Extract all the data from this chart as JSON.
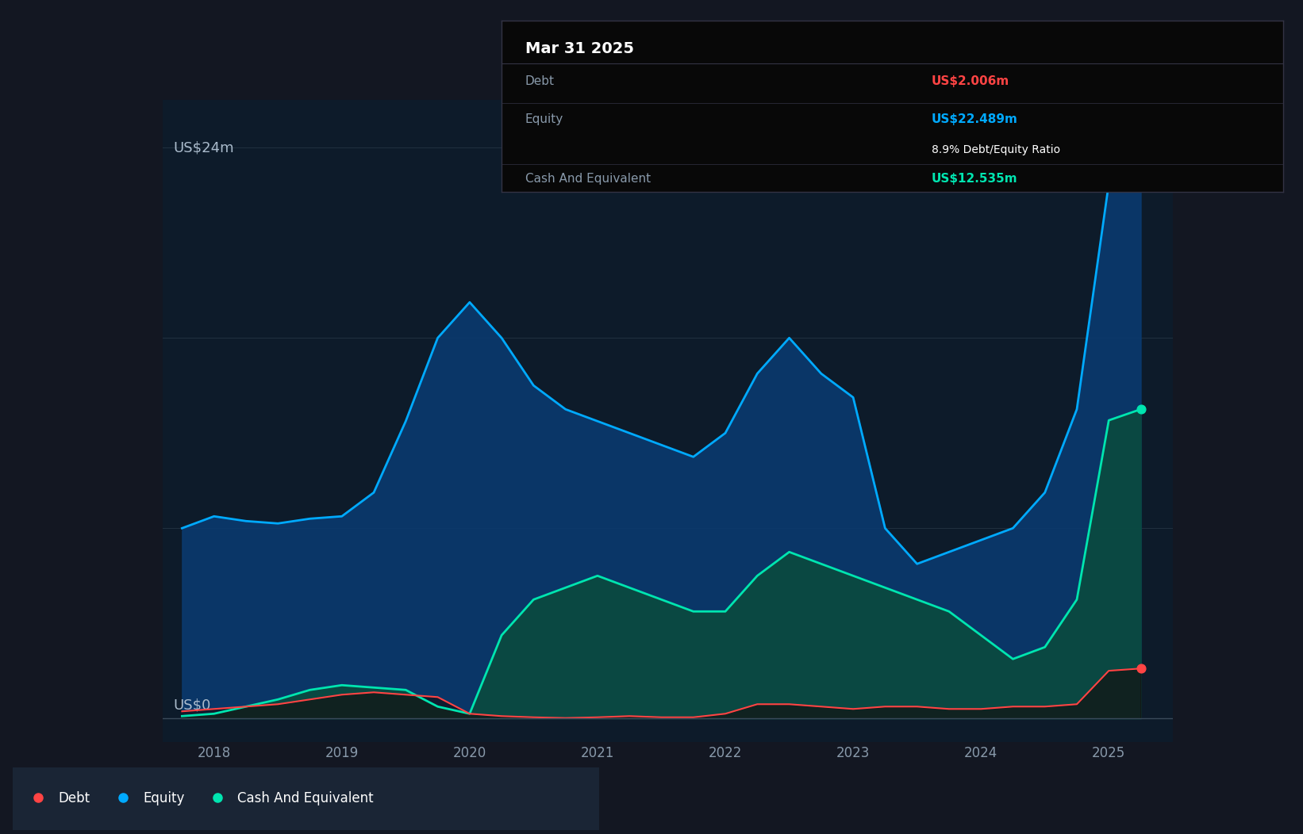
{
  "bg_color": "#131722",
  "plot_bg_color": "#0d1b2a",
  "ylabel": "US$24m",
  "y0_label": "US$0",
  "x_ticks": [
    2018,
    2019,
    2020,
    2021,
    2022,
    2023,
    2024,
    2025
  ],
  "infobox": {
    "title": "Mar 31 2025",
    "debt_label": "Debt",
    "debt_value": "US$2.006m",
    "equity_label": "Equity",
    "equity_value": "US$22.489m",
    "ratio": "8.9% Debt/Equity Ratio",
    "cash_label": "Cash And Equivalent",
    "cash_value": "US$12.535m"
  },
  "equity_color": "#00aaff",
  "debt_color": "#ff4444",
  "cash_color": "#00e5b0",
  "equity_fill": "#0a3a6e",
  "cash_fill": "#0a4a40",
  "grid_color": "#2a3a4a",
  "legend_bg": "#1a2535",
  "dates": [
    2017.75,
    2018.0,
    2018.25,
    2018.5,
    2018.75,
    2019.0,
    2019.25,
    2019.5,
    2019.75,
    2020.0,
    2020.25,
    2020.5,
    2020.75,
    2021.0,
    2021.25,
    2021.5,
    2021.75,
    2022.0,
    2022.25,
    2022.5,
    2022.75,
    2023.0,
    2023.25,
    2023.5,
    2023.75,
    2024.0,
    2024.25,
    2024.5,
    2024.75,
    2025.0,
    2025.25
  ],
  "equity": [
    8.0,
    8.5,
    8.3,
    8.2,
    8.4,
    8.5,
    9.5,
    12.5,
    16.0,
    17.5,
    16.0,
    14.0,
    13.0,
    12.5,
    12.0,
    11.5,
    11.0,
    12.0,
    14.5,
    16.0,
    14.5,
    13.5,
    8.0,
    6.5,
    7.0,
    7.5,
    8.0,
    9.5,
    13.0,
    22.489,
    23.2
  ],
  "debt": [
    0.3,
    0.4,
    0.5,
    0.6,
    0.8,
    1.0,
    1.1,
    1.0,
    0.9,
    0.2,
    0.1,
    0.05,
    0.02,
    0.05,
    0.1,
    0.05,
    0.05,
    0.2,
    0.6,
    0.6,
    0.5,
    0.4,
    0.5,
    0.5,
    0.4,
    0.4,
    0.5,
    0.5,
    0.6,
    2.006,
    2.1
  ],
  "cash": [
    0.1,
    0.2,
    0.5,
    0.8,
    1.2,
    1.4,
    1.3,
    1.2,
    0.5,
    0.2,
    3.5,
    5.0,
    5.5,
    6.0,
    5.5,
    5.0,
    4.5,
    4.5,
    6.0,
    7.0,
    6.5,
    6.0,
    5.5,
    5.0,
    4.5,
    3.5,
    2.5,
    3.0,
    5.0,
    12.535,
    13.0
  ]
}
